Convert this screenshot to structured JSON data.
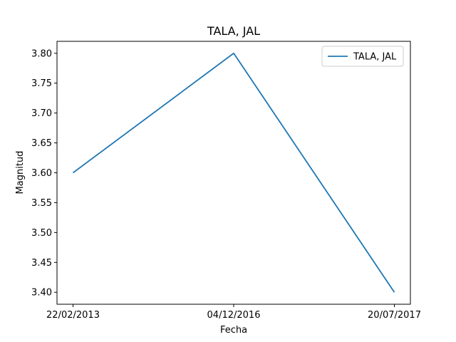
{
  "chart_data": {
    "type": "line",
    "title": "TALA, JAL",
    "xlabel": "Fecha",
    "ylabel": "Magnitud",
    "categories": [
      "22/02/2013",
      "04/12/2016",
      "20/07/2017"
    ],
    "series": [
      {
        "name": "TALA, JAL",
        "values": [
          3.6,
          3.8,
          3.4
        ],
        "color": "#1f77b4"
      }
    ],
    "ylim": [
      3.38,
      3.82
    ],
    "yticks": [
      "3.40",
      "3.45",
      "3.50",
      "3.55",
      "3.60",
      "3.65",
      "3.70",
      "3.75",
      "3.80"
    ],
    "grid": false,
    "legend_position": "top-right"
  }
}
